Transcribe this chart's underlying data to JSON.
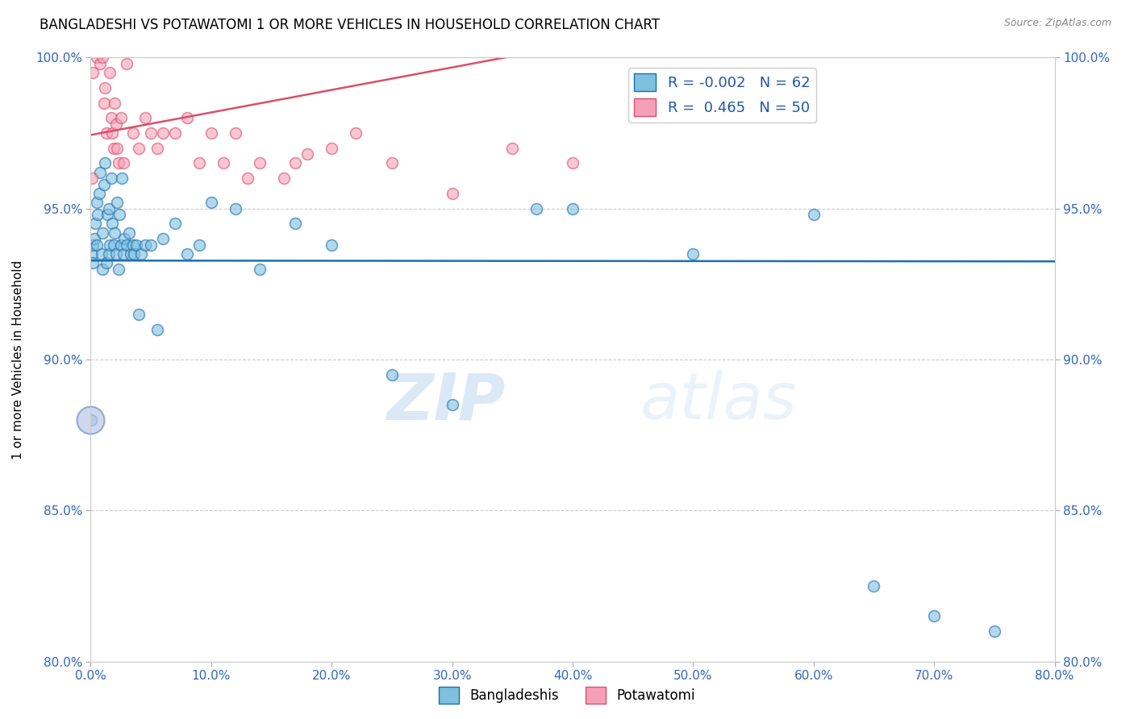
{
  "title": "BANGLADESHI VS POTAWATOMI 1 OR MORE VEHICLES IN HOUSEHOLD CORRELATION CHART",
  "source": "Source: ZipAtlas.com",
  "ylabel": "1 or more Vehicles in Household",
  "xlim": [
    0.0,
    80.0
  ],
  "ylim": [
    80.0,
    100.0
  ],
  "xticks": [
    0.0,
    10.0,
    20.0,
    30.0,
    40.0,
    50.0,
    60.0,
    70.0,
    80.0
  ],
  "yticks": [
    80.0,
    85.0,
    90.0,
    95.0,
    100.0
  ],
  "legend_label1": "Bangladeshis",
  "legend_label2": "Potawatomi",
  "R1": -0.002,
  "N1": 62,
  "R2": 0.465,
  "N2": 50,
  "color1": "#7fbfdf",
  "color2": "#f5a0b8",
  "line_color1": "#1a6faf",
  "line_color2": "#d9506a",
  "watermark_zip": "ZIP",
  "watermark_atlas": "atlas",
  "bangladeshi_x": [
    0.05,
    0.1,
    0.15,
    0.2,
    0.3,
    0.4,
    0.5,
    0.5,
    0.6,
    0.7,
    0.8,
    0.9,
    1.0,
    1.0,
    1.1,
    1.2,
    1.3,
    1.4,
    1.5,
    1.5,
    1.6,
    1.7,
    1.8,
    1.9,
    2.0,
    2.1,
    2.2,
    2.3,
    2.4,
    2.5,
    2.6,
    2.7,
    2.8,
    3.0,
    3.2,
    3.3,
    3.5,
    3.6,
    3.8,
    4.0,
    4.2,
    4.5,
    5.0,
    5.5,
    6.0,
    7.0,
    8.0,
    9.0,
    10.0,
    12.0,
    14.0,
    17.0,
    20.0,
    25.0,
    30.0,
    37.0,
    40.0,
    50.0,
    60.0,
    65.0,
    70.0,
    75.0
  ],
  "bangladeshi_y": [
    88.0,
    93.5,
    93.8,
    93.2,
    94.0,
    94.5,
    95.2,
    93.8,
    94.8,
    95.5,
    96.2,
    93.5,
    93.0,
    94.2,
    95.8,
    96.5,
    93.2,
    94.8,
    95.0,
    93.5,
    93.8,
    96.0,
    94.5,
    93.8,
    94.2,
    93.5,
    95.2,
    93.0,
    94.8,
    93.8,
    96.0,
    93.5,
    94.0,
    93.8,
    94.2,
    93.5,
    93.8,
    93.5,
    93.8,
    91.5,
    93.5,
    93.8,
    93.8,
    91.0,
    94.0,
    94.5,
    93.5,
    93.8,
    95.2,
    95.0,
    93.0,
    94.5,
    93.8,
    89.5,
    88.5,
    95.0,
    95.0,
    93.5,
    94.8,
    82.5,
    81.5,
    81.0
  ],
  "potawatomi_x": [
    0.1,
    0.2,
    0.3,
    0.4,
    0.5,
    0.6,
    0.7,
    0.8,
    0.9,
    1.0,
    1.1,
    1.2,
    1.3,
    1.4,
    1.5,
    1.6,
    1.7,
    1.8,
    1.9,
    2.0,
    2.1,
    2.2,
    2.3,
    2.5,
    2.7,
    3.0,
    3.2,
    3.5,
    4.0,
    4.5,
    5.0,
    5.5,
    6.0,
    7.0,
    8.0,
    9.0,
    10.0,
    11.0,
    12.0,
    13.0,
    14.0,
    16.0,
    17.0,
    18.0,
    20.0,
    22.0,
    25.0,
    30.0,
    35.0,
    40.0
  ],
  "potawatomi_y": [
    96.0,
    99.5,
    100.2,
    100.5,
    100.0,
    100.3,
    100.5,
    99.8,
    100.2,
    100.0,
    98.5,
    99.0,
    97.5,
    100.5,
    100.8,
    99.5,
    98.0,
    97.5,
    97.0,
    98.5,
    97.8,
    97.0,
    96.5,
    98.0,
    96.5,
    99.8,
    100.5,
    97.5,
    97.0,
    98.0,
    97.5,
    97.0,
    97.5,
    97.5,
    98.0,
    96.5,
    97.5,
    96.5,
    97.5,
    96.0,
    96.5,
    96.0,
    96.5,
    96.8,
    97.0,
    97.5,
    96.5,
    95.5,
    97.0,
    96.5
  ]
}
